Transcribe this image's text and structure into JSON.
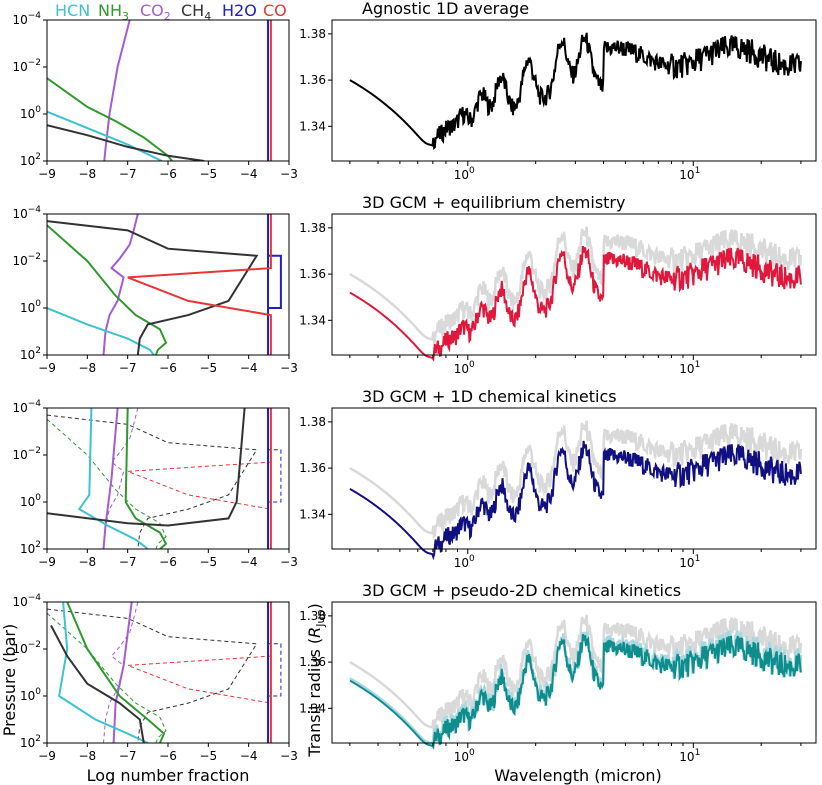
{
  "legend": [
    {
      "label": "HCN",
      "color": "#3bc3d0"
    },
    {
      "label": "NH3",
      "color": "#2e9a2e"
    },
    {
      "label": "CO2",
      "color": "#a55bd8"
    },
    {
      "label": "CH4",
      "color": "#333333"
    },
    {
      "label": "H2O",
      "color": "#2020c8"
    },
    {
      "label": "CO",
      "color": "#e83535"
    }
  ],
  "profile_axes": {
    "xlabel": "Log number fraction",
    "ylabel": "Pressure (bar)",
    "xlim": [
      -9,
      -3
    ],
    "xticks": [
      "-9",
      "-8",
      "-7",
      "-6",
      "-5",
      "-4",
      "-3"
    ],
    "yticks": [
      "10^-4",
      "10^-2",
      "10^0",
      "10^2"
    ]
  },
  "spectrum_axes": {
    "xlabel": "Wavelength (micron)",
    "ylabel": "Transit radius (R_Jup)",
    "xscale": "log",
    "xlim": [
      0.25,
      35
    ],
    "ylim": [
      1.325,
      1.386
    ],
    "yticks": [
      "1.34",
      "1.36",
      "1.38"
    ],
    "xticks": [
      "10^0",
      "10^1"
    ]
  },
  "chart_data": [
    {
      "type": "line",
      "title": "Agnostic 1D average",
      "profiles": [
        {
          "species": "CO2",
          "style": "solid",
          "points": [
            [
              -7.58,
              100
            ],
            [
              -7.55,
              30
            ],
            [
              -7.45,
              1
            ],
            [
              -7.25,
              0.01
            ],
            [
              -6.95,
              0.0001
            ]
          ]
        },
        {
          "species": "NH3",
          "style": "solid",
          "points": [
            [
              -9,
              0.03
            ],
            [
              -8,
              0.5
            ],
            [
              -7.3,
              2
            ],
            [
              -6.6,
              10
            ],
            [
              -6,
              60
            ],
            [
              -5.9,
              100
            ]
          ]
        },
        {
          "species": "HCN",
          "style": "solid",
          "points": [
            [
              -9,
              0.8
            ],
            [
              -8,
              4
            ],
            [
              -7,
              20
            ],
            [
              -6.15,
              100
            ]
          ]
        },
        {
          "species": "CH4",
          "style": "solid",
          "points": [
            [
              -9,
              3
            ],
            [
              -8,
              8
            ],
            [
              -7,
              25
            ],
            [
              -6,
              60
            ],
            [
              -5.1,
              100
            ]
          ]
        },
        {
          "species": "H2O",
          "style": "solid",
          "points": [
            [
              -3.52,
              100
            ],
            [
              -3.52,
              0.0001
            ]
          ]
        },
        {
          "species": "CO",
          "style": "solid",
          "points": [
            [
              -3.45,
              100
            ],
            [
              -3.45,
              0.0001
            ]
          ]
        }
      ],
      "spectrum": {
        "color": "#000000",
        "band": false,
        "reference": false,
        "offset": 0.0
      }
    },
    {
      "type": "line",
      "title": "3D GCM + equilibrium chemistry",
      "profiles": [
        {
          "species": "CO2",
          "style": "solid",
          "points": [
            [
              -6.75,
              0.0001
            ],
            [
              -6.85,
              0.0005
            ],
            [
              -6.95,
              0.002
            ],
            [
              -7.2,
              0.008
            ],
            [
              -7.4,
              0.02
            ],
            [
              -7.1,
              0.05
            ],
            [
              -7.25,
              0.5
            ],
            [
              -7.45,
              2
            ],
            [
              -7.55,
              10
            ],
            [
              -7.6,
              100
            ]
          ]
        },
        {
          "species": "NH3",
          "style": "solid",
          "points": [
            [
              -9,
              0.0003
            ],
            [
              -8,
              0.01
            ],
            [
              -7.3,
              0.3
            ],
            [
              -6.8,
              2
            ],
            [
              -6.2,
              8
            ],
            [
              -6.05,
              30
            ],
            [
              -6.25,
              60
            ],
            [
              -6.3,
              100
            ]
          ]
        },
        {
          "species": "HCN",
          "style": "solid",
          "points": [
            [
              -9,
              1
            ],
            [
              -8,
              5
            ],
            [
              -7,
              20
            ],
            [
              -6.45,
              60
            ],
            [
              -6.35,
              100
            ]
          ]
        },
        {
          "species": "CH4",
          "style": "solid",
          "points": [
            [
              -9,
              0.0002
            ],
            [
              -7,
              0.0005
            ],
            [
              -6,
              0.003
            ],
            [
              -3.8,
              0.006
            ],
            [
              -4.5,
              0.5
            ],
            [
              -5.5,
              2
            ],
            [
              -6.5,
              5
            ],
            [
              -6.7,
              20
            ],
            [
              -6.75,
              100
            ]
          ]
        },
        {
          "species": "H2O",
          "style": "solid",
          "points": [
            [
              -3.52,
              100
            ],
            [
              -3.52,
              0.006
            ],
            [
              -3.2,
              0.006
            ],
            [
              -3.2,
              1
            ],
            [
              -3.52,
              1
            ],
            [
              -3.52,
              0.0001
            ]
          ]
        },
        {
          "species": "CO",
          "style": "solid",
          "points": [
            [
              -3.45,
              100
            ],
            [
              -3.45,
              2
            ],
            [
              -5.5,
              0.5
            ],
            [
              -7,
              0.05
            ],
            [
              -3.45,
              0.02
            ],
            [
              -3.45,
              0.0001
            ]
          ]
        }
      ],
      "spectrum": {
        "color": "#e0183c",
        "band": false,
        "reference": true,
        "offset": -0.008
      }
    },
    {
      "type": "line",
      "title": "3D GCM + 1D chemical kinetics",
      "profiles": [
        {
          "species": "CO2",
          "style": "solid",
          "points": [
            [
              -7.25,
              0.0001
            ],
            [
              -7.4,
              0.1
            ],
            [
              -7.55,
              10
            ],
            [
              -7.6,
              100
            ]
          ]
        },
        {
          "species": "NH3",
          "style": "solid",
          "points": [
            [
              -7,
              0.0001
            ],
            [
              -7.05,
              1
            ],
            [
              -6.8,
              5
            ],
            [
              -6.2,
              20
            ],
            [
              -6.05,
              60
            ],
            [
              -6.2,
              100
            ]
          ]
        },
        {
          "species": "HCN",
          "style": "solid",
          "points": [
            [
              -7.9,
              0.0001
            ],
            [
              -7.95,
              0.5
            ],
            [
              -8.2,
              2
            ],
            [
              -7.5,
              10
            ],
            [
              -6.8,
              40
            ],
            [
              -6.5,
              100
            ]
          ]
        },
        {
          "species": "CH4",
          "style": "solid",
          "points": [
            [
              -9,
              3
            ],
            [
              -7,
              8
            ],
            [
              -6,
              10
            ],
            [
              -4.5,
              5
            ],
            [
              -4.3,
              1
            ],
            [
              -4.1,
              0.0001
            ]
          ]
        },
        {
          "species": "H2O",
          "style": "solid",
          "points": [
            [
              -3.52,
              100
            ],
            [
              -3.52,
              0.0001
            ]
          ]
        },
        {
          "species": "CO",
          "style": "solid",
          "points": [
            [
              -3.45,
              100
            ],
            [
              -3.45,
              0.0001
            ]
          ]
        }
      ],
      "spectrum": {
        "color": "#101080",
        "band": false,
        "reference": true,
        "offset": -0.009
      }
    },
    {
      "type": "line",
      "title": "3D GCM + pseudo-2D chemical kinetics",
      "profiles": [
        {
          "species": "CO2",
          "style": "solid",
          "points": [
            [
              -6.9,
              0.0001
            ],
            [
              -7.1,
              0.05
            ],
            [
              -7.3,
              2
            ],
            [
              -7.35,
              100
            ]
          ]
        },
        {
          "species": "NH3",
          "style": "solid",
          "points": [
            [
              -8.5,
              0.0001
            ],
            [
              -8,
              0.01
            ],
            [
              -7.2,
              1
            ],
            [
              -6.5,
              10
            ],
            [
              -6.1,
              40
            ],
            [
              -6.2,
              100
            ]
          ]
        },
        {
          "species": "HCN",
          "style": "solid",
          "points": [
            [
              -8.6,
              0.0001
            ],
            [
              -8.5,
              0.01
            ],
            [
              -8.7,
              1
            ],
            [
              -7.8,
              10
            ],
            [
              -7,
              40
            ],
            [
              -6.5,
              100
            ]
          ]
        },
        {
          "species": "CH4",
          "style": "solid",
          "points": [
            [
              -8.9,
              0.001
            ],
            [
              -8.5,
              0.02
            ],
            [
              -8,
              0.3
            ],
            [
              -7.2,
              2
            ],
            [
              -6.7,
              10
            ],
            [
              -6.6,
              100
            ]
          ]
        },
        {
          "species": "H2O",
          "style": "solid",
          "points": [
            [
              -3.52,
              100
            ],
            [
              -3.52,
              0.0001
            ]
          ]
        },
        {
          "species": "CO",
          "style": "solid",
          "points": [
            [
              -3.45,
              100
            ],
            [
              -3.45,
              0.0001
            ]
          ]
        }
      ],
      "spectrum": {
        "color": "#0f8d8d",
        "band": true,
        "reference": true,
        "offset": -0.008
      }
    }
  ]
}
